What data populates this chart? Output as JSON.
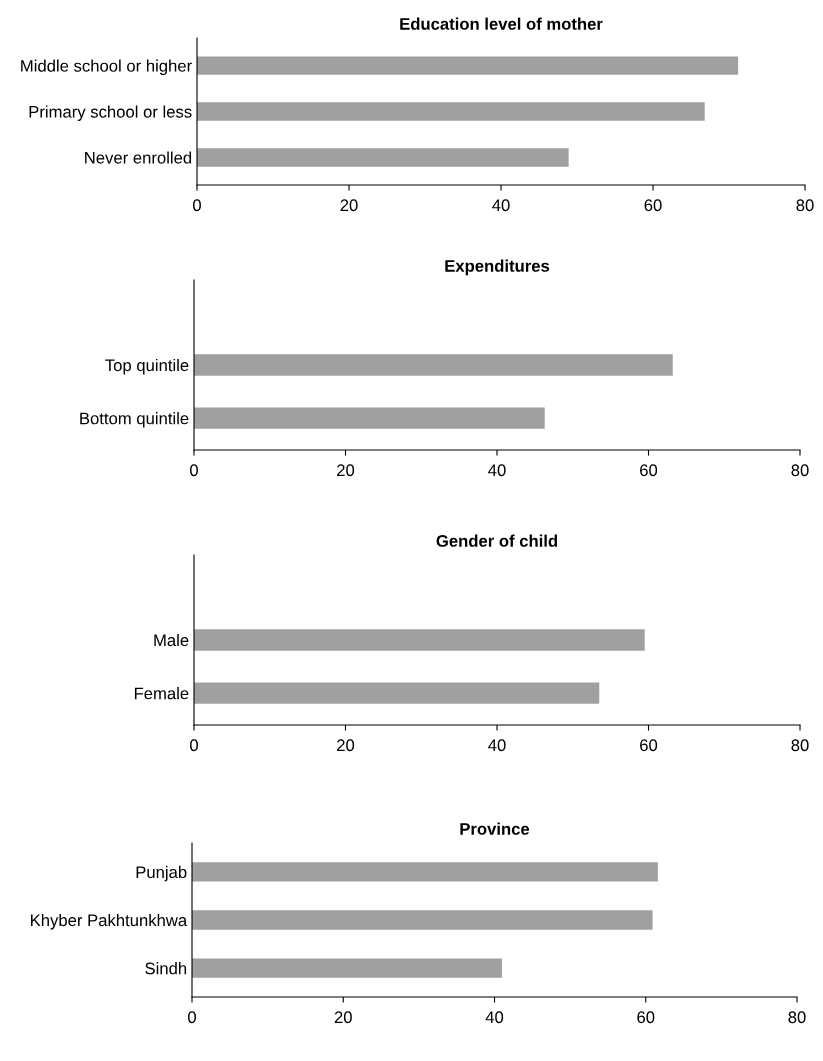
{
  "chart_data": [
    {
      "type": "bar",
      "orientation": "horizontal",
      "title": "Education level of mother",
      "categories": [
        "Middle school or higher",
        "Primary school or less",
        "Never enrolled"
      ],
      "values": [
        71.2,
        66.8,
        48.9
      ],
      "color": "#a0a0a0",
      "xlim": [
        0,
        80
      ],
      "xticks": [
        0,
        20,
        40,
        60,
        80
      ],
      "grid": false
    },
    {
      "type": "bar",
      "orientation": "horizontal",
      "title": "Expenditures",
      "categories": [
        "Top quintile",
        "Bottom quintile"
      ],
      "values": [
        63.2,
        46.3
      ],
      "color": "#a0a0a0",
      "xlim": [
        0,
        80
      ],
      "xticks": [
        0,
        20,
        40,
        60,
        80
      ],
      "grid": false
    },
    {
      "type": "bar",
      "orientation": "horizontal",
      "title": "Gender of child",
      "categories": [
        "Male",
        "Female"
      ],
      "values": [
        59.5,
        53.5
      ],
      "color": "#a0a0a0",
      "xlim": [
        0,
        80
      ],
      "xticks": [
        0,
        20,
        40,
        60,
        80
      ],
      "grid": false
    },
    {
      "type": "bar",
      "orientation": "horizontal",
      "title": "Province",
      "categories": [
        "Punjab",
        "Khyber Pakhtunkhwa",
        "Sindh"
      ],
      "values": [
        61.6,
        60.9,
        41.0
      ],
      "color": "#a0a0a0",
      "xlim": [
        0,
        80
      ],
      "xticks": [
        0,
        20,
        40,
        60,
        80
      ],
      "grid": false
    }
  ]
}
